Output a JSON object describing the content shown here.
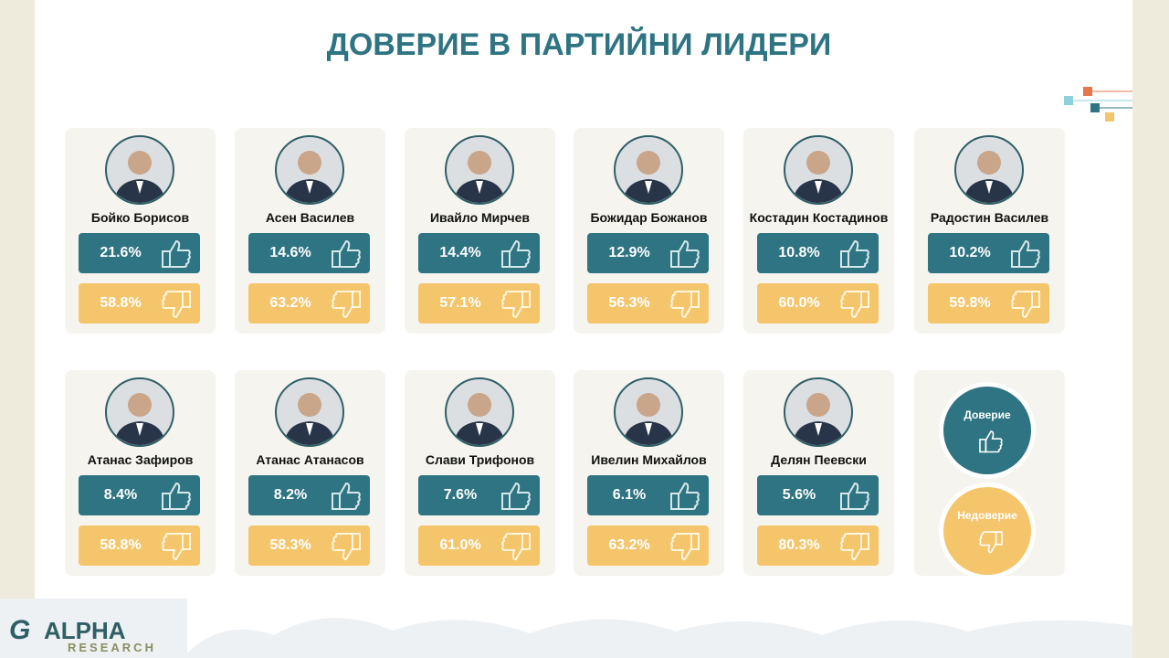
{
  "header": {
    "title": "ДОВЕРИЕ В ПАРТИЙНИ ЛИДЕРИ"
  },
  "leaders": [
    {
      "name": "Бойко Борисов",
      "trust": "21.6%",
      "distrust": "58.8%"
    },
    {
      "name": "Асен Василев",
      "trust": "14.6%",
      "distrust": "63.2%"
    },
    {
      "name": "Ивайло Мирчев",
      "trust": "14.4%",
      "distrust": "57.1%"
    },
    {
      "name": "Божидар Божанов",
      "trust": "12.9%",
      "distrust": "56.3%"
    },
    {
      "name": "Костадин Костадинов",
      "trust": "10.8%",
      "distrust": "60.0%"
    },
    {
      "name": "Радостин Василев",
      "trust": "10.2%",
      "distrust": "59.8%"
    },
    {
      "name": "Атанас Зафиров",
      "trust": "8.4%",
      "distrust": "58.8%"
    },
    {
      "name": "Атанас Атанасов",
      "trust": "8.2%",
      "distrust": "58.3%"
    },
    {
      "name": "Слави Трифонов",
      "trust": "7.6%",
      "distrust": "61.0%"
    },
    {
      "name": "Ивелин Михайлов",
      "trust": "6.1%",
      "distrust": "63.2%"
    },
    {
      "name": "Делян Пеевски",
      "trust": "5.6%",
      "distrust": "80.3%"
    }
  ],
  "legend": {
    "trust": "Доверие",
    "distrust": "Недоверие"
  },
  "logo": {
    "name": "ALPHA",
    "sub": "RESEARCH"
  }
}
